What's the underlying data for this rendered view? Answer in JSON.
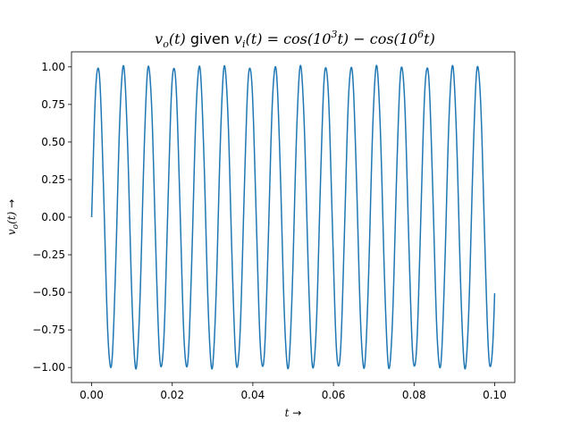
{
  "chart_data": {
    "type": "line",
    "title": {
      "p1": "v",
      "p1_sub": "o",
      "p2": "(t)",
      "p3": " given ",
      "p4": "v",
      "p4_sub": "i",
      "p5": "(t) = cos(10",
      "p5_sup": "3",
      "p6": "t) − cos(10",
      "p6_sup": "6",
      "p7": "t)"
    },
    "xlabel": {
      "var": "t",
      "arrow": " →"
    },
    "ylabel": {
      "var": "v",
      "sub": "o",
      "rest": "(t)",
      "arrow": " →"
    },
    "xlim": [
      -0.005,
      0.105
    ],
    "ylim": [
      -1.1,
      1.1
    ],
    "xticks": [
      0.0,
      0.02,
      0.04,
      0.06,
      0.08,
      0.1
    ],
    "xtick_labels": [
      "0.00",
      "0.02",
      "0.04",
      "0.06",
      "0.08",
      "0.10"
    ],
    "yticks": [
      -1.0,
      -0.75,
      -0.5,
      -0.25,
      0.0,
      0.25,
      0.5,
      0.75,
      1.0
    ],
    "ytick_labels": [
      "−1.00",
      "−0.75",
      "−0.50",
      "−0.25",
      "0.00",
      "0.25",
      "0.50",
      "0.75",
      "1.00"
    ],
    "grid": false,
    "line_color": "#1f77b4",
    "series": [
      {
        "t_start": 0.0,
        "t_end": 0.1,
        "t_step": 5e-05,
        "expression": "sin(1000t) + 0.01*sin(1e6 t)"
      }
    ]
  }
}
